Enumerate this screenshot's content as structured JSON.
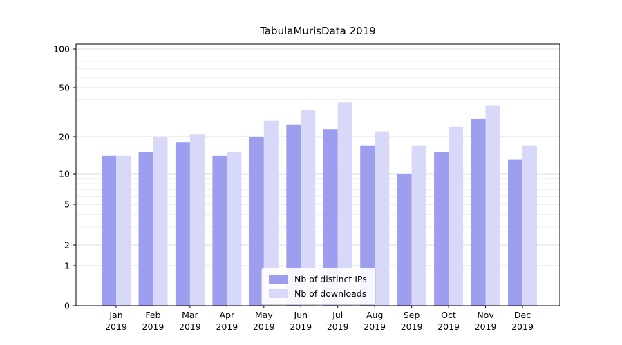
{
  "title": "TabulaMurisData 2019",
  "chart_data": {
    "type": "bar",
    "title": "TabulaMurisData 2019",
    "year_label": "2019",
    "categories": [
      "Jan",
      "Feb",
      "Mar",
      "Apr",
      "May",
      "Jun",
      "Jul",
      "Aug",
      "Sep",
      "Oct",
      "Nov",
      "Dec"
    ],
    "series": [
      {
        "name": "Nb of distinct IPs",
        "color": "#9e9ef0",
        "values": [
          14,
          15,
          18,
          14,
          20,
          25,
          23,
          17,
          10,
          15,
          28,
          13
        ]
      },
      {
        "name": "Nb of downloads",
        "color": "#d8d8f8",
        "values": [
          14,
          20,
          21,
          15,
          27,
          33,
          38,
          22,
          17,
          24,
          36,
          17
        ]
      }
    ],
    "yscale": "symlog",
    "ylim": [
      0,
      100
    ],
    "yticks": [
      0,
      1,
      2,
      5,
      10,
      20,
      50,
      100
    ],
    "y_minor_gridlines": [
      3,
      4,
      6,
      7,
      8,
      9,
      30,
      40,
      60,
      70,
      80,
      90
    ],
    "grid": true,
    "legend_position": "lower center"
  },
  "colors": {
    "grid_major": "#dcdcdc",
    "grid_minor": "#ebebeb",
    "axis": "#000000",
    "background": "#ffffff"
  }
}
